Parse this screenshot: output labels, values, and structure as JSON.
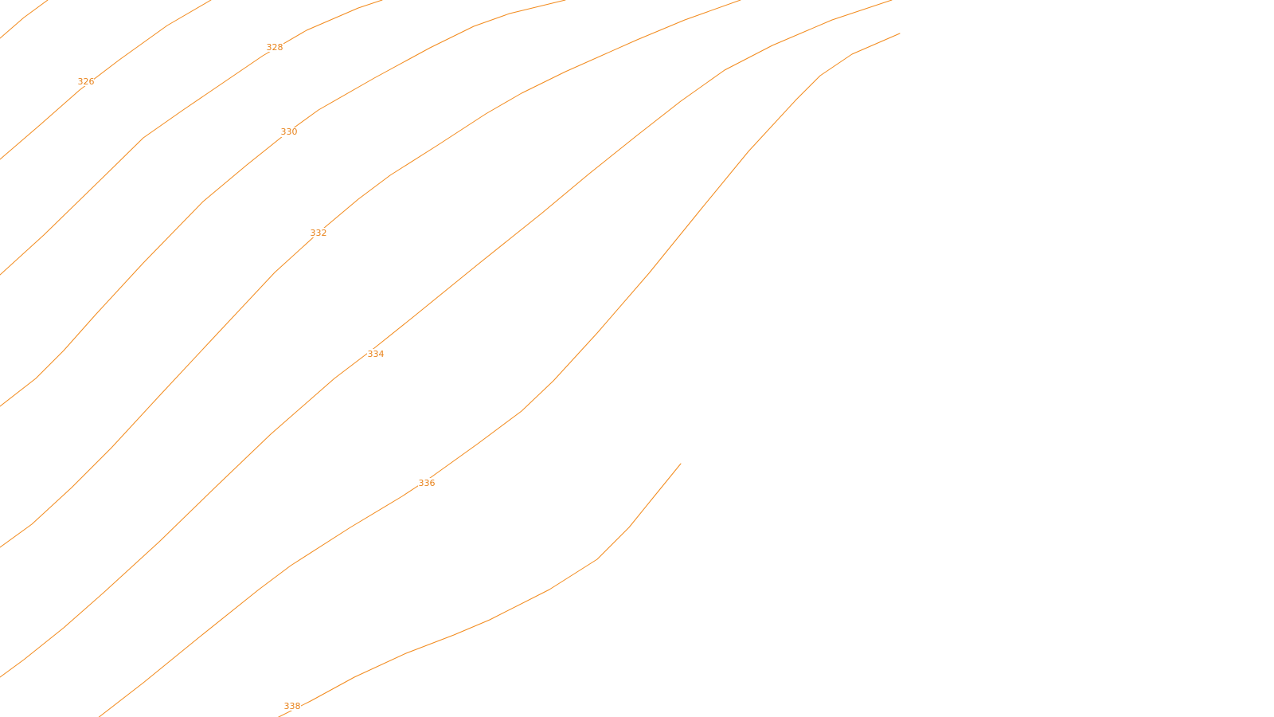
{
  "map": {
    "line_color": "#f28a1c",
    "label_color": "#e8821a",
    "background": "#ffffff",
    "contours": [
      {
        "elevation": "326"
      },
      {
        "elevation": "328"
      },
      {
        "elevation": "330"
      },
      {
        "elevation": "332"
      },
      {
        "elevation": "334"
      },
      {
        "elevation": "336"
      },
      {
        "elevation": "338"
      }
    ]
  }
}
